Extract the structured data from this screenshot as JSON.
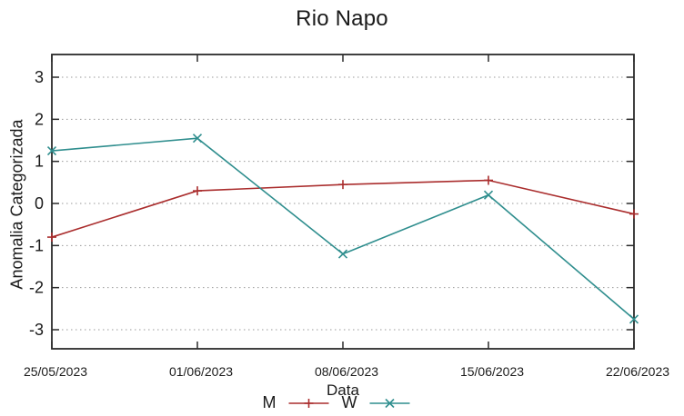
{
  "chart_data": {
    "type": "line",
    "title": "Rio Napo",
    "xlabel": "Data",
    "ylabel": "Anomalia Categorizada",
    "categories": [
      "25/05/2023",
      "01/06/2023",
      "08/06/2023",
      "15/06/2023",
      "22/06/2023"
    ],
    "y_ticks": [
      3,
      2,
      1,
      0,
      -1,
      -2,
      -3
    ],
    "ylim": [
      -3.5,
      3.5
    ],
    "grid": "horizontal-dashed",
    "legend_position": "bottom-center",
    "series": [
      {
        "name": "M",
        "marker": "plus",
        "color": "#aa2d2d",
        "values": [
          -0.8,
          0.3,
          0.45,
          0.55,
          -0.25
        ]
      },
      {
        "name": "W",
        "marker": "cross",
        "color": "#2f8e8e",
        "values": [
          1.25,
          1.55,
          -1.2,
          0.2,
          -2.75
        ]
      }
    ],
    "colors": {
      "axis": "#2b2b2b",
      "grid": "#999999",
      "text": "#1a1a1a",
      "background": "#ffffff"
    }
  }
}
